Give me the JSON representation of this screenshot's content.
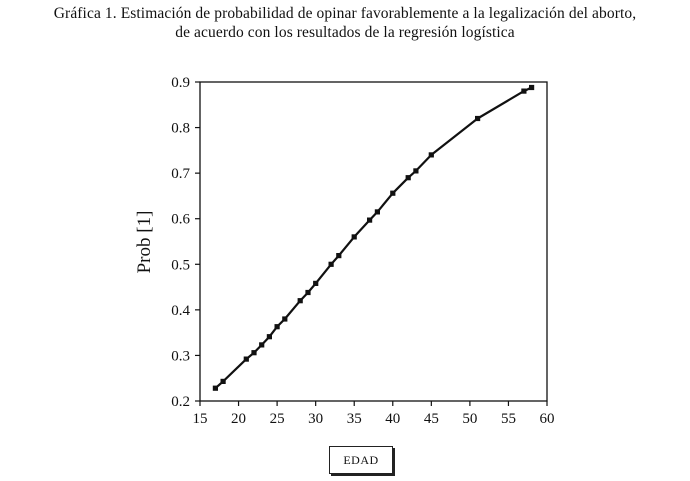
{
  "chart_data": {
    "type": "line",
    "title_line1": "Gráfica 1. Estimación de probabilidad de opinar favorablemente a la legalización del aborto,",
    "title_line2": "de acuerdo con los resultados de la regresión logística",
    "xlabel": "EDAD",
    "ylabel": "Prob [1]",
    "xlim": [
      15,
      60
    ],
    "ylim": [
      0.2,
      0.9
    ],
    "xticks": [
      "15",
      "20",
      "25",
      "30",
      "35",
      "40",
      "45",
      "50",
      "55",
      "60"
    ],
    "yticks": [
      "0.2",
      "0.3",
      "0.4",
      "0.5",
      "0.6",
      "0.7",
      "0.8",
      "0.9"
    ],
    "grid": false,
    "series": [
      {
        "x": [
          17,
          18,
          21,
          22,
          23,
          24,
          25,
          26,
          28,
          29,
          30,
          32,
          33,
          35,
          37,
          38,
          40,
          42,
          43,
          45,
          51,
          57,
          58
        ],
        "y": [
          0.228,
          0.243,
          0.292,
          0.306,
          0.323,
          0.341,
          0.363,
          0.38,
          0.42,
          0.438,
          0.458,
          0.5,
          0.519,
          0.56,
          0.597,
          0.615,
          0.656,
          0.69,
          0.705,
          0.74,
          0.82,
          0.88,
          0.888
        ]
      }
    ]
  }
}
